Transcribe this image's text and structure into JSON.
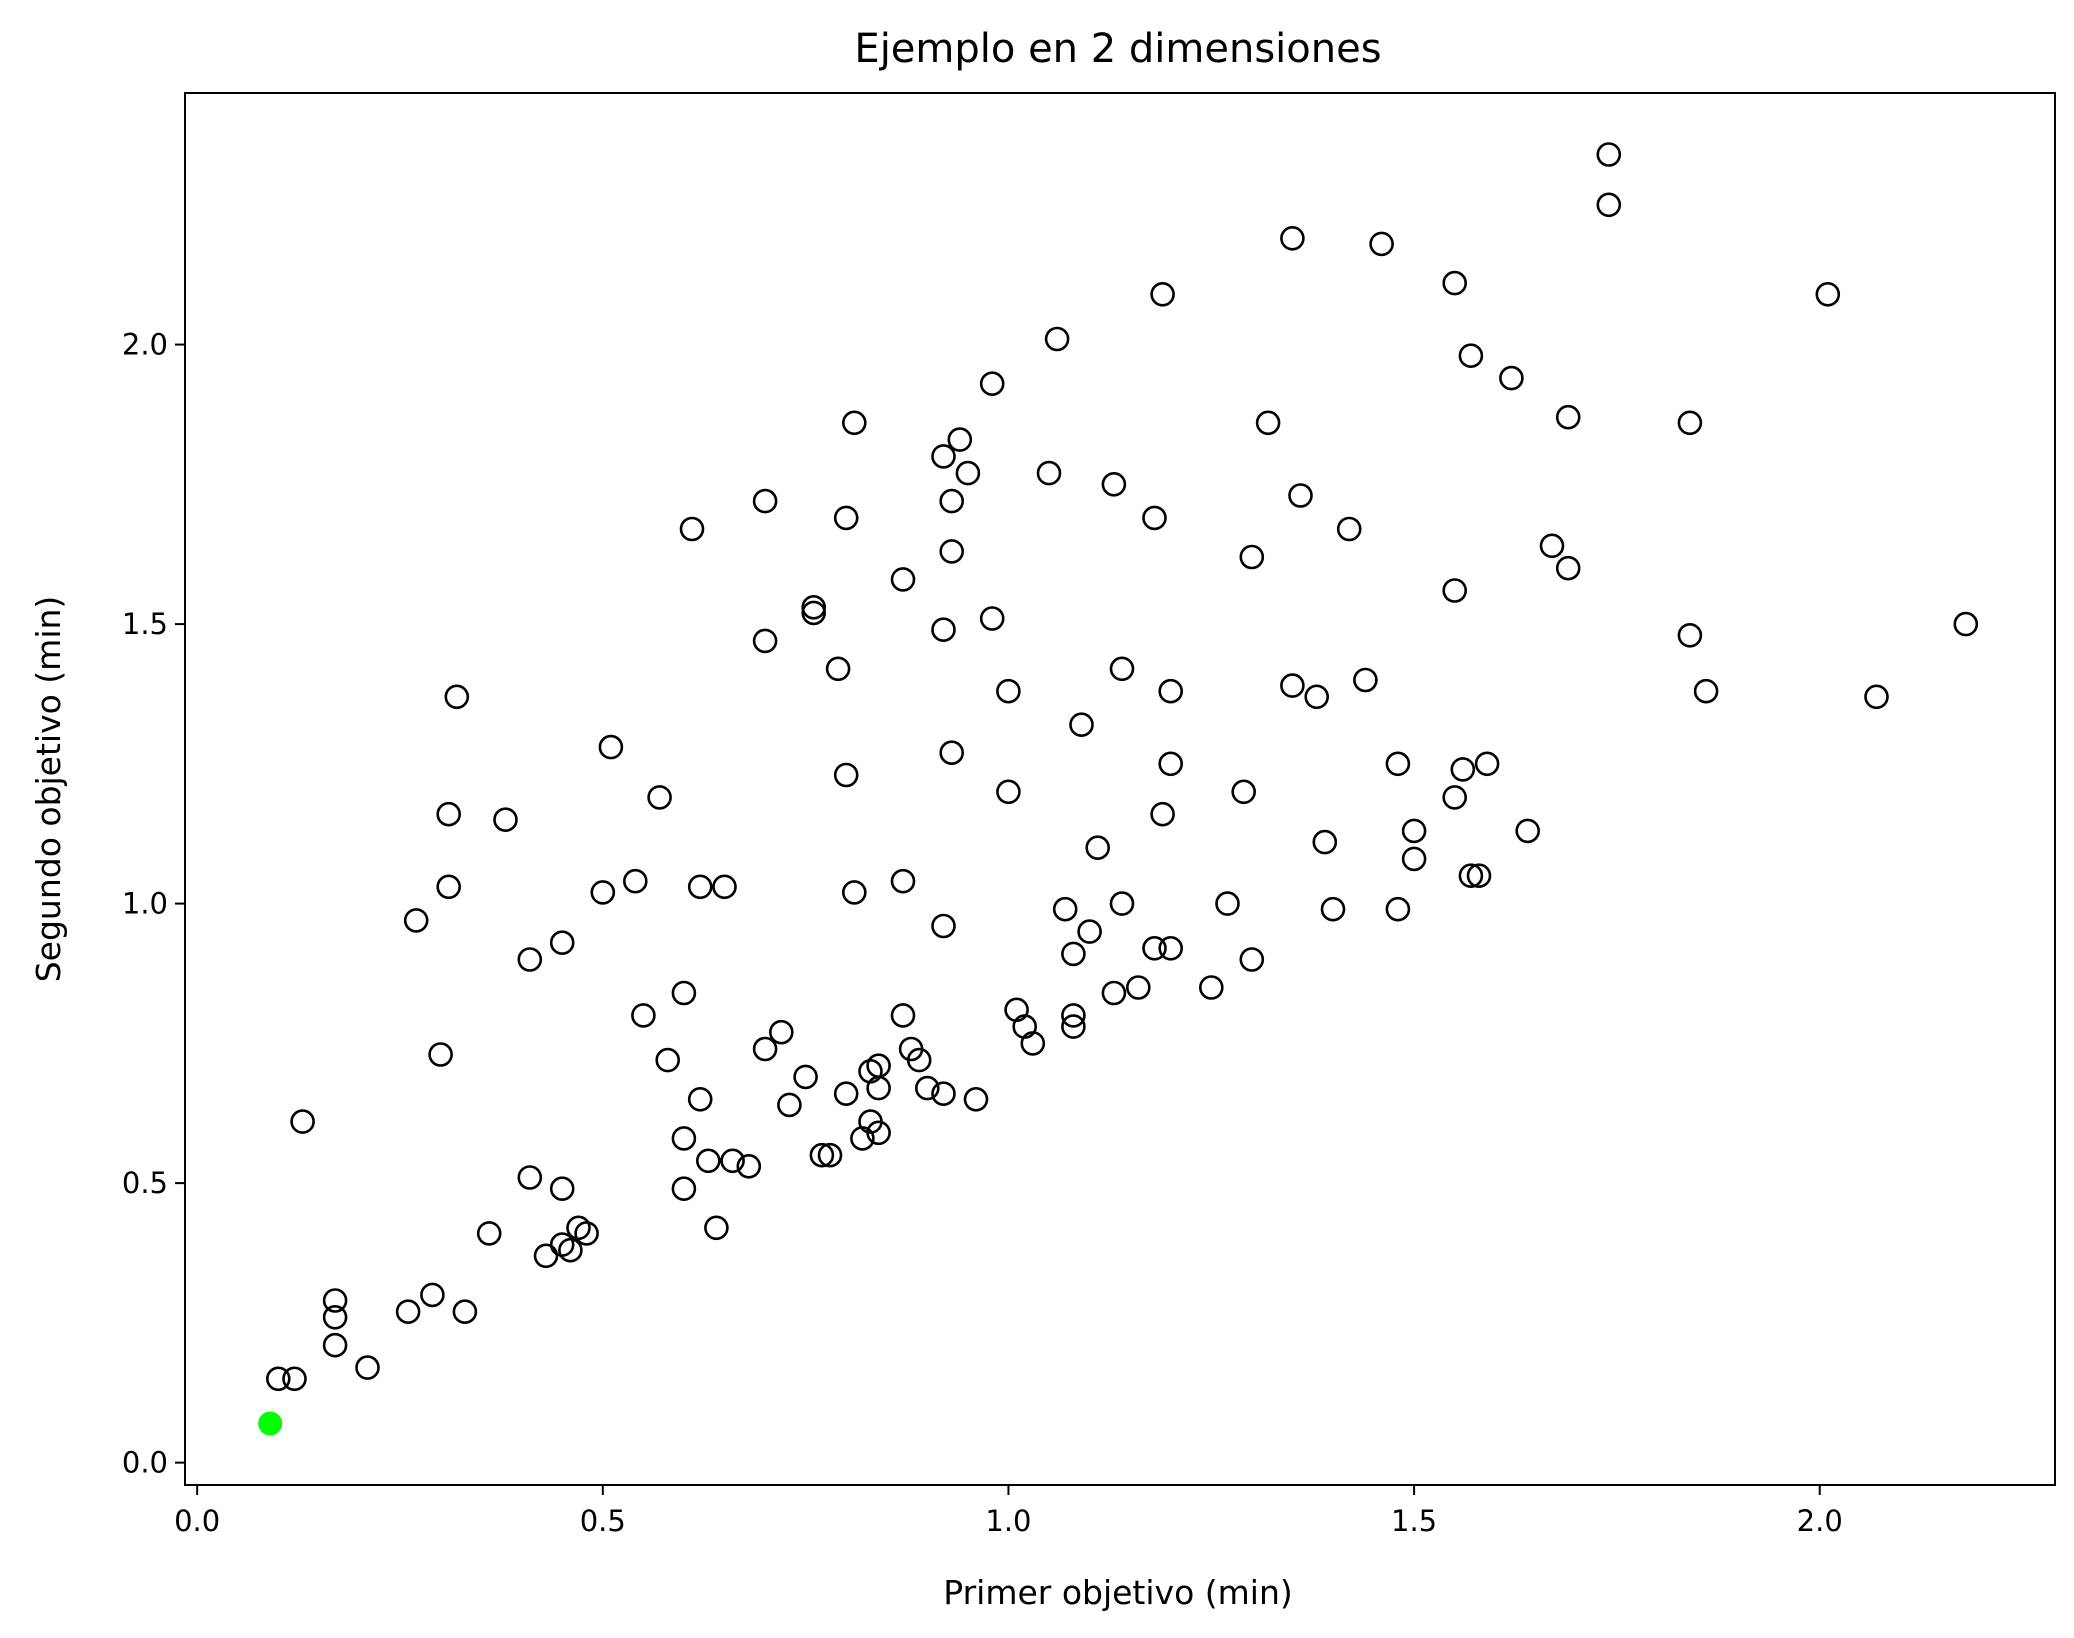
{
  "chart_data": {
    "type": "scatter",
    "title": "Ejemplo en 2 dimensiones",
    "xlabel": "Primer objetivo (min)",
    "ylabel": "Segundo objetivo (min)",
    "xlim": [
      -0.015,
      2.29
    ],
    "ylim": [
      -0.04,
      2.45
    ],
    "xticks": [
      0.0,
      0.5,
      1.0,
      1.5,
      2.0
    ],
    "xtick_labels": [
      "0.0",
      "0.5",
      "1.0",
      "1.5",
      "2.0"
    ],
    "yticks": [
      0.0,
      0.5,
      1.0,
      1.5,
      2.0
    ],
    "ytick_labels": [
      "0.0",
      "0.5",
      "1.0",
      "1.5",
      "2.0"
    ],
    "grid": false,
    "highlight_color": "#00ff00",
    "marker_edge_color": "#000000",
    "series": [
      {
        "marker": "hollow-circle",
        "points": [
          [
            1.74,
            2.34
          ],
          [
            1.74,
            2.25
          ],
          [
            1.35,
            2.19
          ],
          [
            1.46,
            2.18
          ],
          [
            1.55,
            2.11
          ],
          [
            1.19,
            2.09
          ],
          [
            2.01,
            2.09
          ],
          [
            1.06,
            2.01
          ],
          [
            1.57,
            1.98
          ],
          [
            1.62,
            1.94
          ],
          [
            0.98,
            1.93
          ],
          [
            1.32,
            1.86
          ],
          [
            1.69,
            1.87
          ],
          [
            1.84,
            1.86
          ],
          [
            0.81,
            1.86
          ],
          [
            0.94,
            1.83
          ],
          [
            0.92,
            1.8
          ],
          [
            0.95,
            1.77
          ],
          [
            1.05,
            1.77
          ],
          [
            1.13,
            1.75
          ],
          [
            0.93,
            1.72
          ],
          [
            1.36,
            1.73
          ],
          [
            0.7,
            1.72
          ],
          [
            0.8,
            1.69
          ],
          [
            1.18,
            1.69
          ],
          [
            0.61,
            1.67
          ],
          [
            1.42,
            1.67
          ],
          [
            1.67,
            1.64
          ],
          [
            0.93,
            1.63
          ],
          [
            1.3,
            1.62
          ],
          [
            1.69,
            1.6
          ],
          [
            0.87,
            1.58
          ],
          [
            1.55,
            1.56
          ],
          [
            0.76,
            1.53
          ],
          [
            0.76,
            1.52
          ],
          [
            0.98,
            1.51
          ],
          [
            0.92,
            1.49
          ],
          [
            2.18,
            1.5
          ],
          [
            1.84,
            1.48
          ],
          [
            0.7,
            1.47
          ],
          [
            0.79,
            1.42
          ],
          [
            1.14,
            1.42
          ],
          [
            1.44,
            1.4
          ],
          [
            1.35,
            1.39
          ],
          [
            1.0,
            1.38
          ],
          [
            1.38,
            1.37
          ],
          [
            1.2,
            1.38
          ],
          [
            1.86,
            1.38
          ],
          [
            2.07,
            1.37
          ],
          [
            0.32,
            1.37
          ],
          [
            1.09,
            1.32
          ],
          [
            0.51,
            1.28
          ],
          [
            0.93,
            1.27
          ],
          [
            1.48,
            1.25
          ],
          [
            1.2,
            1.25
          ],
          [
            1.59,
            1.25
          ],
          [
            1.56,
            1.24
          ],
          [
            0.8,
            1.23
          ],
          [
            1.0,
            1.2
          ],
          [
            1.29,
            1.2
          ],
          [
            1.55,
            1.19
          ],
          [
            0.57,
            1.19
          ],
          [
            1.19,
            1.16
          ],
          [
            0.31,
            1.16
          ],
          [
            0.38,
            1.15
          ],
          [
            1.5,
            1.13
          ],
          [
            1.64,
            1.13
          ],
          [
            1.39,
            1.11
          ],
          [
            1.11,
            1.1
          ],
          [
            1.5,
            1.08
          ],
          [
            1.57,
            1.05
          ],
          [
            1.58,
            1.05
          ],
          [
            0.54,
            1.04
          ],
          [
            0.87,
            1.04
          ],
          [
            0.62,
            1.03
          ],
          [
            0.65,
            1.03
          ],
          [
            0.31,
            1.03
          ],
          [
            0.5,
            1.02
          ],
          [
            0.81,
            1.02
          ],
          [
            1.27,
            1.0
          ],
          [
            1.14,
            1.0
          ],
          [
            1.07,
            0.99
          ],
          [
            1.4,
            0.99
          ],
          [
            1.48,
            0.99
          ],
          [
            0.27,
            0.97
          ],
          [
            0.92,
            0.96
          ],
          [
            1.1,
            0.95
          ],
          [
            0.45,
            0.93
          ],
          [
            1.2,
            0.92
          ],
          [
            1.18,
            0.92
          ],
          [
            1.08,
            0.91
          ],
          [
            1.3,
            0.9
          ],
          [
            0.41,
            0.9
          ],
          [
            1.25,
            0.85
          ],
          [
            1.16,
            0.85
          ],
          [
            1.13,
            0.84
          ],
          [
            0.6,
            0.84
          ],
          [
            1.01,
            0.81
          ],
          [
            0.87,
            0.8
          ],
          [
            1.08,
            0.8
          ],
          [
            0.55,
            0.8
          ],
          [
            1.02,
            0.78
          ],
          [
            1.08,
            0.78
          ],
          [
            0.72,
            0.77
          ],
          [
            1.03,
            0.75
          ],
          [
            0.7,
            0.74
          ],
          [
            0.88,
            0.74
          ],
          [
            0.58,
            0.72
          ],
          [
            0.3,
            0.73
          ],
          [
            0.89,
            0.72
          ],
          [
            0.83,
            0.7
          ],
          [
            0.84,
            0.71
          ],
          [
            0.75,
            0.69
          ],
          [
            0.9,
            0.67
          ],
          [
            0.84,
            0.67
          ],
          [
            0.8,
            0.66
          ],
          [
            0.92,
            0.66
          ],
          [
            0.96,
            0.65
          ],
          [
            0.62,
            0.65
          ],
          [
            0.73,
            0.64
          ],
          [
            0.83,
            0.61
          ],
          [
            0.13,
            0.61
          ],
          [
            0.84,
            0.59
          ],
          [
            0.6,
            0.58
          ],
          [
            0.82,
            0.58
          ],
          [
            0.77,
            0.55
          ],
          [
            0.78,
            0.55
          ],
          [
            0.63,
            0.54
          ],
          [
            0.66,
            0.54
          ],
          [
            0.68,
            0.53
          ],
          [
            0.41,
            0.51
          ],
          [
            0.6,
            0.49
          ],
          [
            0.45,
            0.49
          ],
          [
            0.64,
            0.42
          ],
          [
            0.47,
            0.42
          ],
          [
            0.48,
            0.41
          ],
          [
            0.36,
            0.41
          ],
          [
            0.45,
            0.39
          ],
          [
            0.46,
            0.38
          ],
          [
            0.43,
            0.37
          ],
          [
            0.29,
            0.3
          ],
          [
            0.17,
            0.29
          ],
          [
            0.26,
            0.27
          ],
          [
            0.33,
            0.27
          ],
          [
            0.17,
            0.26
          ],
          [
            0.17,
            0.21
          ],
          [
            0.21,
            0.17
          ],
          [
            0.1,
            0.15
          ],
          [
            0.12,
            0.15
          ]
        ]
      },
      {
        "marker": "filled-circle",
        "color": "#00ff00",
        "points": [
          [
            0.09,
            0.07
          ]
        ]
      }
    ]
  }
}
